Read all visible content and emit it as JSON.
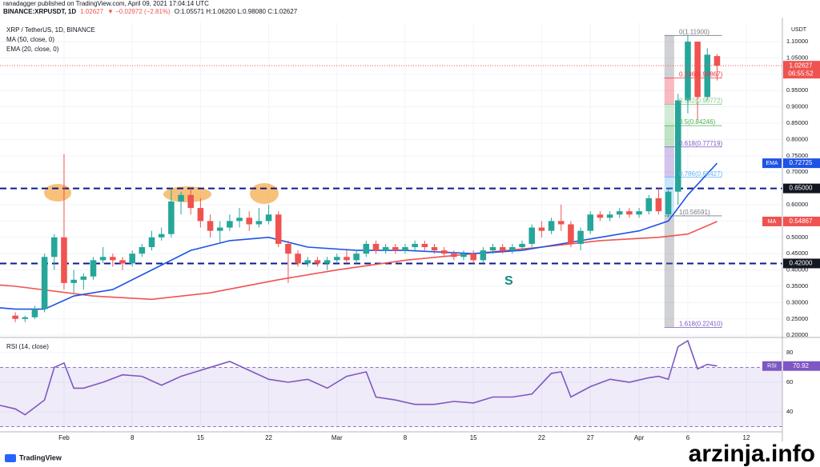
{
  "header": {
    "publisher": "ranadagger published on TradingView.com, April 09, 2021 17:04:14 UTC",
    "symbol": "BINANCE:XRPUSDT, 1D",
    "last": "1.02627",
    "change": "▼ −0.02972 (−2.81%)",
    "ohlc": "O:1.05571 H:1.06200 L:0.98080 C:1.02627"
  },
  "chart_data": [
    {
      "type": "candlestick",
      "title": "XRP / TetherUS, 1D, BINANCE",
      "axis_unit": "USDT",
      "up_color": "#26a69a",
      "down_color": "#ef5350",
      "candles": [
        [
          0.26,
          0.27,
          0.24,
          0.25
        ],
        [
          0.25,
          0.26,
          0.24,
          0.255
        ],
        [
          0.255,
          0.29,
          0.25,
          0.28
        ],
        [
          0.28,
          0.45,
          0.27,
          0.44
        ],
        [
          0.44,
          0.51,
          0.4,
          0.5
        ],
        [
          0.5,
          0.755,
          0.34,
          0.36
        ],
        [
          0.36,
          0.4,
          0.33,
          0.37
        ],
        [
          0.37,
          0.39,
          0.34,
          0.38
        ],
        [
          0.38,
          0.44,
          0.37,
          0.43
        ],
        [
          0.43,
          0.47,
          0.42,
          0.44
        ],
        [
          0.44,
          0.45,
          0.41,
          0.43
        ],
        [
          0.43,
          0.44,
          0.4,
          0.42
        ],
        [
          0.42,
          0.46,
          0.41,
          0.45
        ],
        [
          0.45,
          0.48,
          0.44,
          0.47
        ],
        [
          0.47,
          0.52,
          0.46,
          0.5
        ],
        [
          0.5,
          0.53,
          0.49,
          0.51
        ],
        [
          0.51,
          0.65,
          0.5,
          0.61
        ],
        [
          0.61,
          0.64,
          0.57,
          0.63
        ],
        [
          0.63,
          0.65,
          0.57,
          0.59
        ],
        [
          0.59,
          0.62,
          0.53,
          0.55
        ],
        [
          0.55,
          0.57,
          0.5,
          0.52
        ],
        [
          0.52,
          0.55,
          0.48,
          0.53
        ],
        [
          0.53,
          0.57,
          0.52,
          0.55
        ],
        [
          0.55,
          0.59,
          0.53,
          0.56
        ],
        [
          0.56,
          0.58,
          0.52,
          0.54
        ],
        [
          0.54,
          0.59,
          0.53,
          0.55
        ],
        [
          0.55,
          0.6,
          0.54,
          0.57
        ],
        [
          0.57,
          0.58,
          0.47,
          0.48
        ],
        [
          0.48,
          0.49,
          0.36,
          0.45
        ],
        [
          0.45,
          0.46,
          0.41,
          0.42
        ],
        [
          0.42,
          0.44,
          0.41,
          0.43
        ],
        [
          0.43,
          0.44,
          0.41,
          0.42
        ],
        [
          0.42,
          0.44,
          0.4,
          0.43
        ],
        [
          0.43,
          0.45,
          0.42,
          0.44
        ],
        [
          0.44,
          0.46,
          0.42,
          0.43
        ],
        [
          0.43,
          0.46,
          0.42,
          0.45
        ],
        [
          0.45,
          0.49,
          0.44,
          0.48
        ],
        [
          0.48,
          0.49,
          0.45,
          0.46
        ],
        [
          0.46,
          0.48,
          0.45,
          0.47
        ],
        [
          0.47,
          0.48,
          0.45,
          0.46
        ],
        [
          0.46,
          0.48,
          0.45,
          0.47
        ],
        [
          0.47,
          0.49,
          0.46,
          0.48
        ],
        [
          0.48,
          0.49,
          0.46,
          0.47
        ],
        [
          0.47,
          0.48,
          0.45,
          0.46
        ],
        [
          0.46,
          0.47,
          0.44,
          0.45
        ],
        [
          0.45,
          0.46,
          0.43,
          0.44
        ],
        [
          0.44,
          0.46,
          0.43,
          0.45
        ],
        [
          0.45,
          0.46,
          0.42,
          0.43
        ],
        [
          0.43,
          0.47,
          0.42,
          0.46
        ],
        [
          0.46,
          0.48,
          0.45,
          0.47
        ],
        [
          0.47,
          0.48,
          0.45,
          0.46
        ],
        [
          0.46,
          0.48,
          0.45,
          0.47
        ],
        [
          0.47,
          0.49,
          0.46,
          0.48
        ],
        [
          0.48,
          0.54,
          0.47,
          0.53
        ],
        [
          0.53,
          0.55,
          0.5,
          0.52
        ],
        [
          0.52,
          0.56,
          0.51,
          0.55
        ],
        [
          0.55,
          0.6,
          0.52,
          0.54
        ],
        [
          0.54,
          0.55,
          0.47,
          0.48
        ],
        [
          0.48,
          0.53,
          0.46,
          0.52
        ],
        [
          0.52,
          0.58,
          0.51,
          0.57
        ],
        [
          0.57,
          0.58,
          0.55,
          0.56
        ],
        [
          0.56,
          0.58,
          0.55,
          0.57
        ],
        [
          0.57,
          0.59,
          0.56,
          0.58
        ],
        [
          0.58,
          0.59,
          0.56,
          0.57
        ],
        [
          0.57,
          0.59,
          0.56,
          0.58
        ],
        [
          0.58,
          0.63,
          0.57,
          0.62
        ],
        [
          0.62,
          0.65,
          0.57,
          0.58
        ],
        [
          0.57,
          0.65,
          0.56,
          0.64
        ],
        [
          0.64,
          0.94,
          0.6,
          0.92
        ],
        [
          0.92,
          1.119,
          0.88,
          1.1
        ],
        [
          1.1,
          1.1,
          0.86,
          0.93
        ],
        [
          0.93,
          1.08,
          0.92,
          1.06
        ],
        [
          1.05571,
          1.062,
          0.9808,
          1.02627
        ]
      ],
      "countdown": "06:55:52",
      "series": [
        {
          "name": "MA (50, close, 0)",
          "tag": "MA",
          "color": "#ef5350",
          "x": [
            -2,
            0,
            8,
            14,
            20,
            27,
            33,
            40,
            47,
            54,
            60,
            66,
            69,
            72
          ],
          "values": [
            0.355,
            0.35,
            0.32,
            0.31,
            0.33,
            0.37,
            0.4,
            0.43,
            0.45,
            0.47,
            0.49,
            0.5,
            0.51,
            0.54867
          ]
        },
        {
          "name": "EMA (20, close, 0)",
          "tag": "EMA",
          "color": "#1e53e5",
          "x": [
            -2,
            0,
            3,
            6,
            10,
            14,
            18,
            22,
            26,
            30,
            35,
            40,
            47,
            52,
            56,
            60,
            64,
            67,
            69,
            72
          ],
          "values": [
            0.285,
            0.28,
            0.28,
            0.32,
            0.34,
            0.4,
            0.46,
            0.49,
            0.5,
            0.47,
            0.46,
            0.46,
            0.45,
            0.46,
            0.48,
            0.5,
            0.52,
            0.55,
            0.63,
            0.72725
          ]
        }
      ],
      "levels": [
        {
          "value": 0.65,
          "label": "0.65000"
        },
        {
          "value": 0.42,
          "label": "0.42000"
        }
      ],
      "level_color": "#0d1b8c",
      "fib": [
        {
          "value": 1.119,
          "label": "0(1.11900)",
          "color": "#787b86"
        },
        {
          "value": 0.98867,
          "label": "0.236(0.98867)",
          "color": "#f23645"
        },
        {
          "value": 0.90772,
          "label": "0.382(0.90772)",
          "color": "#81c784"
        },
        {
          "value": 0.84246,
          "label": "0.5(0.84246)",
          "color": "#4caf50"
        },
        {
          "value": 0.77719,
          "label": "0.618(0.77719)",
          "color": "#7e57c2"
        },
        {
          "value": 0.68427,
          "label": "0.786(0.68427)",
          "color": "#64b5f6"
        },
        {
          "value": 0.56591,
          "label": "1(0.56591)",
          "color": "#787b86"
        },
        {
          "value": 0.2241,
          "label": "1.618(0.22410)",
          "color": "#7e57c2"
        }
      ],
      "annotations": [
        "S"
      ],
      "xlim": [
        -1.57,
        78.7
      ],
      "xticks": [
        {
          "value": 5,
          "label": "Feb"
        },
        {
          "value": 12,
          "label": "8"
        },
        {
          "value": 19,
          "label": "15"
        },
        {
          "value": 26,
          "label": "22"
        },
        {
          "value": 33,
          "label": "Mar"
        },
        {
          "value": 40,
          "label": "8"
        },
        {
          "value": 47,
          "label": "15"
        },
        {
          "value": 54,
          "label": "22"
        },
        {
          "value": 59,
          "label": "27"
        },
        {
          "value": 64,
          "label": "Apr"
        },
        {
          "value": 69,
          "label": "6"
        },
        {
          "value": 75,
          "label": "12"
        }
      ],
      "ylim": [
        0.198,
        1.159
      ],
      "yticks": [
        {
          "value": 0.2,
          "label": "0.20000"
        },
        {
          "value": 0.25,
          "label": "0.25000"
        },
        {
          "value": 0.3,
          "label": "0.30000"
        },
        {
          "value": 0.35,
          "label": "0.35000"
        },
        {
          "value": 0.4,
          "label": "0.40000"
        },
        {
          "value": 0.45,
          "label": "0.45000"
        },
        {
          "value": 0.5,
          "label": "0.50000"
        },
        {
          "value": 0.55,
          "label": "0.55000"
        },
        {
          "value": 0.6,
          "label": "0.60000"
        },
        {
          "value": 0.7,
          "label": "0.70000"
        },
        {
          "value": 0.75,
          "label": "0.75000"
        },
        {
          "value": 0.8,
          "label": "0.80000"
        },
        {
          "value": 0.85,
          "label": "0.85000"
        },
        {
          "value": 0.9,
          "label": "0.90000"
        },
        {
          "value": 0.95,
          "label": "0.95000"
        },
        {
          "value": 1.0,
          "label": "1.00000"
        },
        {
          "value": 1.05,
          "label": "1.05000"
        },
        {
          "value": 1.1,
          "label": "1.10000"
        }
      ],
      "grid": true
    },
    {
      "type": "line",
      "title": "RSI (14, close)",
      "series": [
        {
          "tag": "RSI",
          "color": "#7e57c2",
          "x": [
            -2,
            0,
            1,
            3,
            4,
            5,
            6,
            7,
            9,
            11,
            13,
            15,
            17,
            19,
            21,
            22,
            24,
            26,
            28,
            30,
            32,
            34,
            36,
            37,
            39,
            41,
            43,
            45,
            47,
            49,
            51,
            53,
            55,
            56,
            57,
            59,
            61,
            63,
            65,
            66,
            67,
            68,
            69,
            70,
            71,
            72
          ],
          "values": [
            45,
            42,
            38,
            48,
            70,
            73,
            56,
            56,
            60,
            65,
            64,
            58,
            64,
            68,
            72,
            74,
            68,
            62,
            60,
            62,
            56,
            64,
            67,
            50,
            48,
            45,
            45,
            47,
            46,
            50,
            50,
            52,
            66,
            67,
            50,
            57,
            62,
            60,
            63,
            64,
            62,
            84,
            88,
            69,
            72,
            70.92
          ]
        }
      ],
      "band": [
        30,
        70
      ],
      "xlim": [
        -1.57,
        78.7
      ],
      "ylim": [
        26.5,
        88.6
      ],
      "yticks": [
        40,
        60,
        80
      ],
      "grid": true
    }
  ],
  "footer": {
    "brand": "TradingView"
  },
  "watermark": "arzinja.info"
}
